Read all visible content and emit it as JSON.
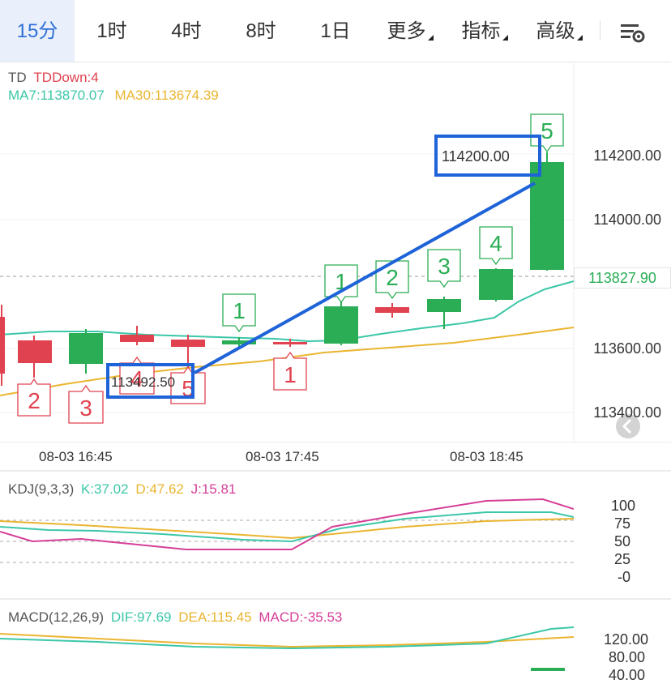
{
  "tabs": [
    {
      "label": "15分",
      "active": true
    },
    {
      "label": "1时"
    },
    {
      "label": "4时"
    },
    {
      "label": "8时"
    },
    {
      "label": "1日"
    },
    {
      "label": "更多",
      "dropdown": true
    },
    {
      "label": "指标",
      "dropdown": true
    },
    {
      "label": "高级",
      "dropdown": true
    }
  ],
  "settings_icon": "chart-settings-icon",
  "main_chart": {
    "td_label": "TD",
    "td_value": "TDDown:4",
    "ma7": "MA7:113870.07",
    "ma30": "MA30:113674.39",
    "price_ticks": [
      "114200.00",
      "114000.00",
      "113600.00",
      "113400.00"
    ],
    "current_price": "113827.90",
    "time_labels": [
      "08-03 16:45",
      "08-03 17:45",
      "08-03 18:45"
    ],
    "annotation_start": "113492.50",
    "annotation_end": "114200.00",
    "colors": {
      "up": "#2aad55",
      "down": "#e0424f",
      "ma7": "#3cc7a8",
      "ma30": "#eab530",
      "drawing": "#1e63d8"
    }
  },
  "td_marks": [
    {
      "label": "2",
      "color": "down"
    },
    {
      "label": "3",
      "color": "down"
    },
    {
      "label": "4",
      "color": "down"
    },
    {
      "label": "5",
      "color": "down"
    },
    {
      "label": "1",
      "color": "up"
    },
    {
      "label": "1",
      "color": "down"
    },
    {
      "label": "1",
      "color": "up"
    },
    {
      "label": "2",
      "color": "up"
    },
    {
      "label": "3",
      "color": "up"
    },
    {
      "label": "4",
      "color": "up"
    },
    {
      "label": "5",
      "color": "up"
    }
  ],
  "kdj": {
    "title": "KDJ(9,3,3)",
    "k": "K:37.02",
    "d": "D:47.62",
    "j": "J:15.81",
    "ticks": [
      "100",
      "75",
      "50",
      "25",
      "-0"
    ]
  },
  "macd": {
    "title": "MACD(12,26,9)",
    "dif": "DIF:97.69",
    "dea": "DEA:115.45",
    "macd": "MACD:-35.53",
    "ticks": [
      "120.00",
      "80.00",
      "40.00"
    ]
  }
}
